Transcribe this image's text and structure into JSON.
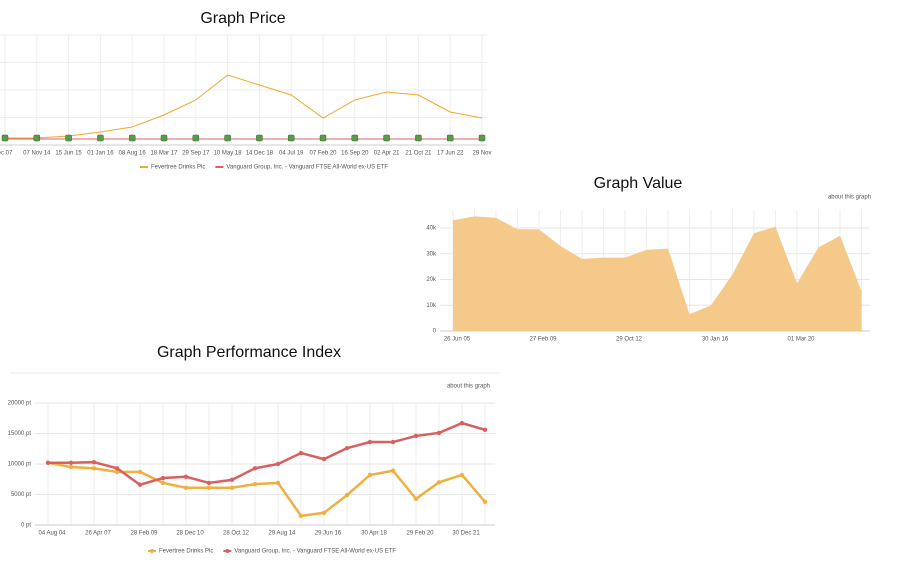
{
  "chart_data": [
    {
      "type": "line",
      "title": "Graph Price",
      "categories": [
        "ec 07",
        "07 Nov 14",
        "15 Jun 15",
        "01 Jan 16",
        "08 Aug 16",
        "18 Mar 17",
        "29 Sep 17",
        "10 May 18",
        "14 Dec 18",
        "04 Jul 19",
        "07 Feb 20",
        "16 Sep 20",
        "02 Apr 21",
        "21 Oct 21",
        "17 Jun 22",
        "29 Nov"
      ],
      "series": [
        {
          "name": "Fevertree Drinks Plc",
          "color": "#f0a830",
          "values": [
            7,
            7,
            9,
            13,
            18,
            30,
            45,
            70,
            60,
            50,
            27,
            45,
            53,
            50,
            33,
            27
          ]
        },
        {
          "name": "Vanguard Group, Inc. - Vanguard FTSE All-World ex-US ETF",
          "color": "#e06060",
          "values": [
            6,
            6,
            6,
            6,
            6,
            6,
            6,
            6,
            6,
            6,
            6,
            6,
            6,
            6,
            6,
            6
          ]
        }
      ],
      "ylim": [
        0,
        110
      ],
      "grid": true
    },
    {
      "type": "area",
      "title": "Graph Value",
      "annotation": "about this graph",
      "categories": [
        "26 Jun 05",
        null,
        null,
        null,
        "27 Feb 09",
        null,
        null,
        null,
        "29 Oct 12",
        null,
        null,
        null,
        "30 Jan 16",
        null,
        null,
        null,
        "01 Mar 20",
        null,
        null,
        null
      ],
      "values": [
        43000,
        44500,
        44000,
        39500,
        39500,
        33000,
        28000,
        28500,
        28500,
        31500,
        32000,
        6500,
        10000,
        22000,
        38000,
        40500,
        18500,
        32500,
        37000,
        15500
      ],
      "color": "#f5c98a",
      "ylim": [
        0,
        47000
      ],
      "yticks": [
        0,
        {
          "value": 10000,
          "label": "10k"
        },
        {
          "value": 20000,
          "label": "20k"
        },
        {
          "value": 30000,
          "label": "30k"
        },
        {
          "value": 40000,
          "label": "40k"
        }
      ],
      "grid": true
    },
    {
      "type": "line",
      "title": "Graph Performance Index",
      "annotation": "about this graph",
      "categories": [
        "04 Aug 04",
        null,
        "26 Apr 07",
        null,
        "28 Feb 09",
        null,
        "28 Dec 10",
        null,
        "28 Oct 12",
        null,
        "29 Aug 14",
        null,
        "29 Jun 16",
        null,
        "30 Apr 18",
        null,
        "29 Feb 20",
        null,
        "30 Dec 21",
        null
      ],
      "series": [
        {
          "name": "Fevertree Drinks Plc",
          "color": "#f0b040",
          "values": [
            10200,
            9500,
            9300,
            8700,
            8700,
            6900,
            6100,
            6100,
            6100,
            6700,
            6900,
            1500,
            2000,
            4900,
            8200,
            8900,
            4300,
            7000,
            8200,
            3800
          ]
        },
        {
          "name": "Vanguard Group, Inc. - Vanguard FTSE All-World ex-US ETF",
          "color": "#d96060",
          "values": [
            10200,
            10200,
            10300,
            9300,
            6600,
            7700,
            7900,
            6900,
            7400,
            9300,
            10000,
            11800,
            10800,
            12600,
            13600,
            13600,
            14600,
            15100,
            16700,
            15600
          ]
        }
      ],
      "ylim": [
        0,
        20000
      ],
      "yticks": [
        {
          "value": 0,
          "label": "0 pt"
        },
        {
          "value": 5000,
          "label": "5000 pt"
        },
        {
          "value": 10000,
          "label": "10000 pt"
        },
        {
          "value": 15000,
          "label": "15000 pt"
        },
        {
          "value": 20000,
          "label": "20000 pt"
        }
      ],
      "grid": true,
      "markers": true
    }
  ]
}
